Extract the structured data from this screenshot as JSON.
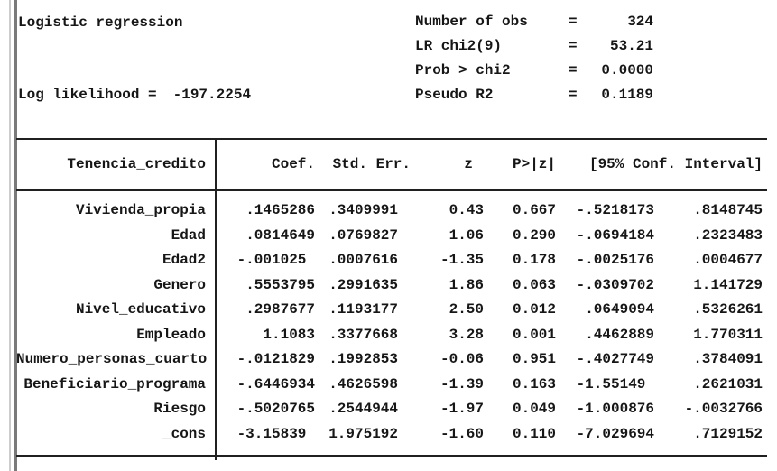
{
  "header": {
    "title": "Logistic regression",
    "log_likelihood_label": "Log likelihood =",
    "log_likelihood_value": "-197.2254",
    "stats": [
      {
        "label": "Number of obs",
        "eq": "=",
        "value": "324"
      },
      {
        "label": "LR chi2(9)",
        "eq": "=",
        "value": "53.21"
      },
      {
        "label": "Prob > chi2",
        "eq": "=",
        "value": "0.0000"
      },
      {
        "label": "Pseudo R2",
        "eq": "=",
        "value": "0.1189"
      }
    ]
  },
  "table": {
    "depvar": "Tenencia_credito",
    "columns": [
      "Coef.",
      "Std. Err.",
      "z",
      "P>|z|",
      "[95% Conf. Interval]"
    ],
    "rows": [
      {
        "var": "Vivienda_propia",
        "coef": ".1465286",
        "se": ".3409991",
        "z": "0.43",
        "p": "0.667",
        "ci_low": "-.5218173",
        "ci_high": ".8148745"
      },
      {
        "var": "Edad",
        "coef": ".0814649",
        "se": ".0769827",
        "z": "1.06",
        "p": "0.290",
        "ci_low": "-.0694184",
        "ci_high": ".2323483"
      },
      {
        "var": "Edad2",
        "coef": "-.001025 ",
        "se": ".0007616",
        "z": "-1.35",
        "p": "0.178",
        "ci_low": "-.0025176",
        "ci_high": ".0004677"
      },
      {
        "var": "Genero",
        "coef": ".5553795",
        "se": ".2991635",
        "z": "1.86",
        "p": "0.063",
        "ci_low": "-.0309702",
        "ci_high": "1.141729"
      },
      {
        "var": "Nivel_educativo",
        "coef": ".2987677",
        "se": ".1193177",
        "z": "2.50",
        "p": "0.012",
        "ci_low": ".0649094",
        "ci_high": ".5326261"
      },
      {
        "var": "Empleado",
        "coef": "1.1083",
        "se": ".3377668",
        "z": "3.28",
        "p": "0.001",
        "ci_low": ".4462889",
        "ci_high": "1.770311"
      },
      {
        "var": "Numero_personas_cuarto",
        "coef": "-.0121829",
        "se": ".1992853",
        "z": "-0.06",
        "p": "0.951",
        "ci_low": "-.4027749",
        "ci_high": ".3784091"
      },
      {
        "var": "Beneficiario_programa",
        "coef": "-.6446934",
        "se": ".4626598",
        "z": "-1.39",
        "p": "0.163",
        "ci_low": "-1.55149 ",
        "ci_high": ".2621031"
      },
      {
        "var": "Riesgo",
        "coef": "-.5020765",
        "se": ".2544944",
        "z": "-1.97",
        "p": "0.049",
        "ci_low": "-1.000876",
        "ci_high": "-.0032766"
      },
      {
        "var": "_cons",
        "coef": "-3.15839 ",
        "se": "1.975192",
        "z": "-1.60",
        "p": "0.110",
        "ci_low": "-7.029694",
        "ci_high": ".7129152"
      }
    ]
  },
  "layout": {
    "row_tops": [
      224,
      252,
      279,
      307,
      334,
      362,
      389,
      417,
      444,
      472
    ]
  }
}
